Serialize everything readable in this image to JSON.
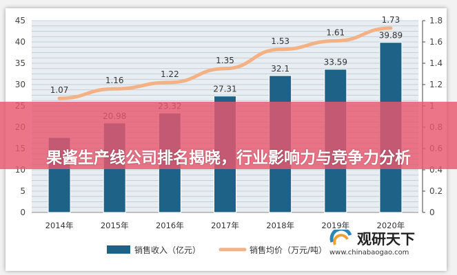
{
  "banner": {
    "title": "果酱生产线公司排名揭晓，行业影响力与竞争力分析"
  },
  "watermark": {
    "name": "观研天下",
    "url": "www.chinabaogao.com"
  },
  "chart_data": {
    "type": "bar+line",
    "categories": [
      "2014年",
      "2015年",
      "2016年",
      "2017年",
      "2018年",
      "2019年",
      "2020年"
    ],
    "series": [
      {
        "name": "销售收入（亿元）",
        "type": "bar",
        "axis": "left",
        "color": "#1f6288",
        "values": [
          17.6,
          20.98,
          23.32,
          27.31,
          32.1,
          33.59,
          39.89
        ],
        "labels": [
          null,
          "20.98",
          "23.32",
          "27.31",
          "32.1",
          "33.59",
          "39.89"
        ]
      },
      {
        "name": "销售均价（万元/吨）",
        "type": "line",
        "axis": "right",
        "color": "#f4b183",
        "values": [
          1.07,
          1.16,
          1.22,
          1.35,
          1.53,
          1.61,
          1.73
        ],
        "labels": [
          "1.07",
          "1.16",
          "1.22",
          "1.35",
          "1.53",
          "1.61",
          "1.73"
        ]
      }
    ],
    "left_axis": {
      "range": [
        0,
        45
      ],
      "ticks": [
        "0",
        "5",
        "10",
        "15",
        "20",
        "25",
        "30",
        "35",
        "40",
        "45"
      ]
    },
    "right_axis": {
      "range": [
        0,
        1.8
      ],
      "ticks": [
        "0",
        "0.2",
        "0.4",
        "0.6",
        "0.8",
        "1",
        "1.2",
        "1.4",
        "1.6",
        "1.8"
      ]
    },
    "grid": true,
    "legend": "bottom"
  }
}
